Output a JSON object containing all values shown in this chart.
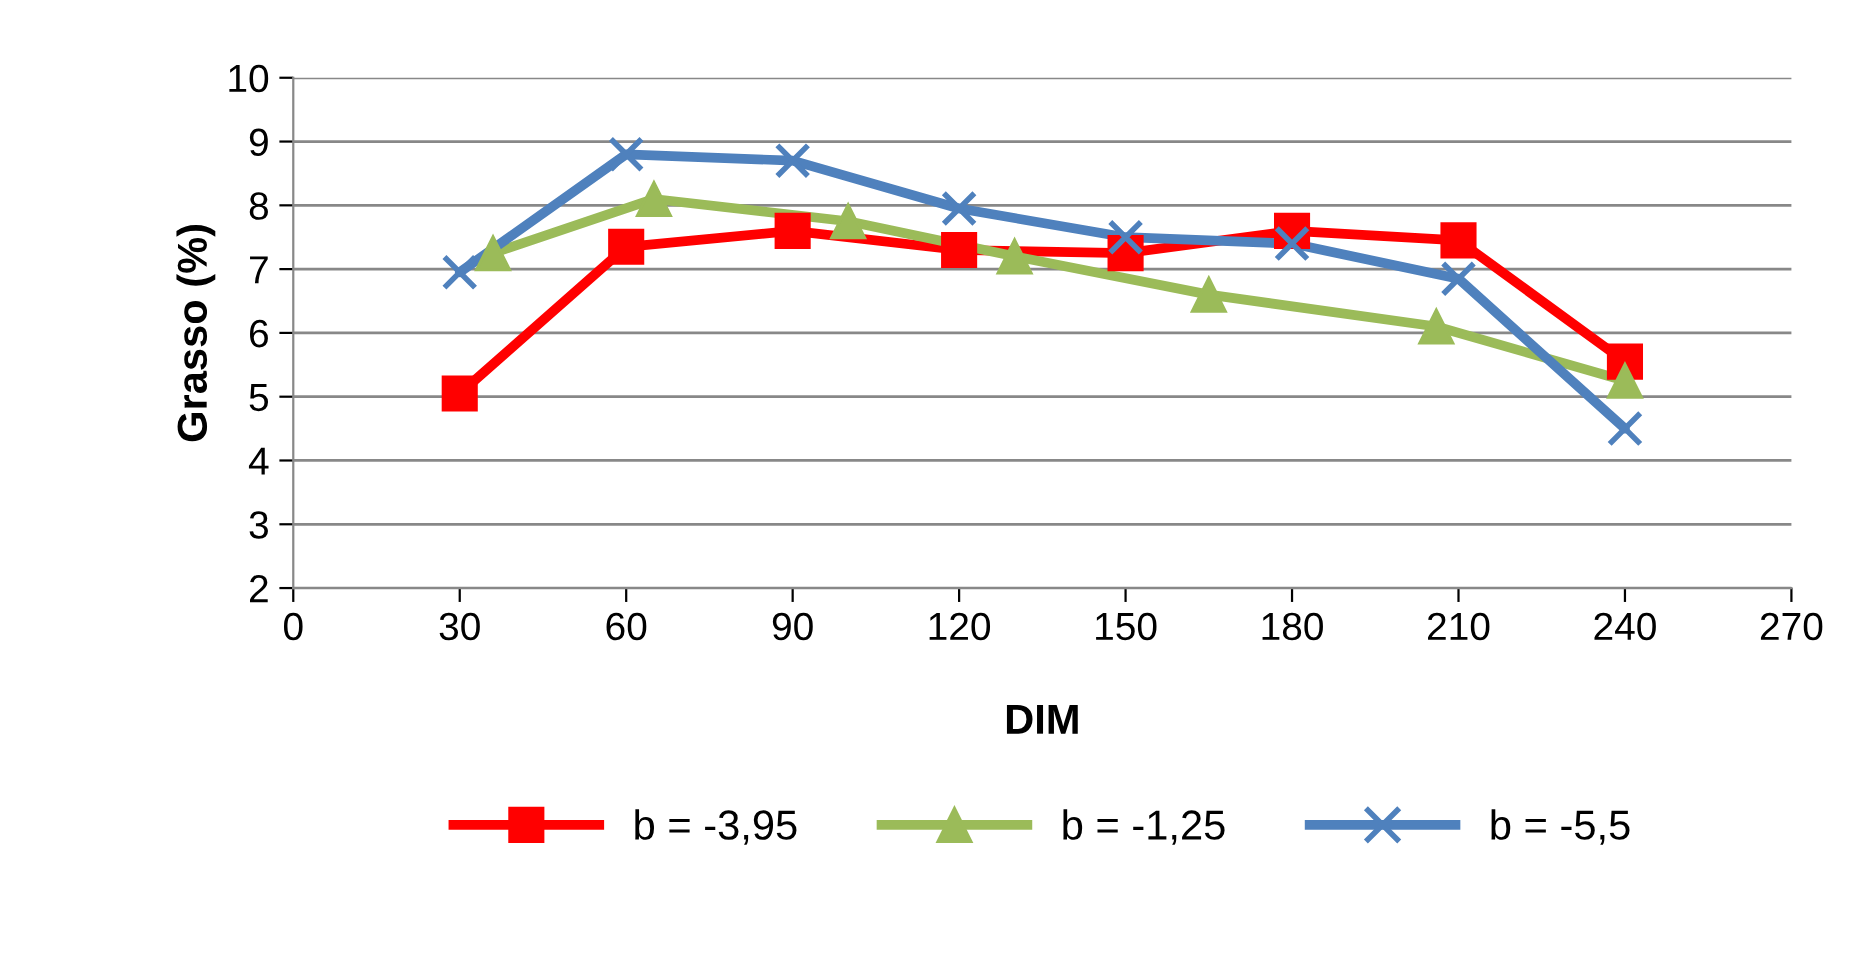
{
  "chart_data": {
    "type": "line",
    "xlabel": "DIM",
    "ylabel": "Grasso (%)",
    "xlim": [
      0,
      270
    ],
    "xticks": [
      0,
      30,
      60,
      90,
      120,
      150,
      180,
      210,
      240,
      270
    ],
    "ylim": [
      2,
      10
    ],
    "yticks": [
      2,
      3,
      4,
      5,
      6,
      7,
      8,
      9,
      10
    ],
    "grid": "y",
    "legend": "bottom",
    "series": [
      {
        "name": "b = -3,95",
        "color": "#ff0000",
        "marker": "square",
        "x": [
          30,
          60,
          90,
          120,
          150,
          180,
          210,
          240
        ],
        "values": [
          5.05,
          7.35,
          7.6,
          7.3,
          7.25,
          7.6,
          7.45,
          5.55
        ]
      },
      {
        "name": "b = -1,25",
        "color": "#9bbb59",
        "marker": "triangle",
        "x": [
          36,
          65,
          100,
          130,
          165,
          206,
          240
        ],
        "values": [
          7.25,
          8.1,
          7.75,
          7.2,
          6.6,
          6.1,
          5.25
        ]
      },
      {
        "name": "b = -5,5",
        "color": "#4f81bd",
        "marker": "cross",
        "x": [
          30,
          60,
          90,
          120,
          150,
          180,
          210,
          240
        ],
        "values": [
          6.95,
          8.8,
          8.7,
          7.95,
          7.5,
          7.4,
          6.85,
          4.5
        ]
      }
    ]
  }
}
